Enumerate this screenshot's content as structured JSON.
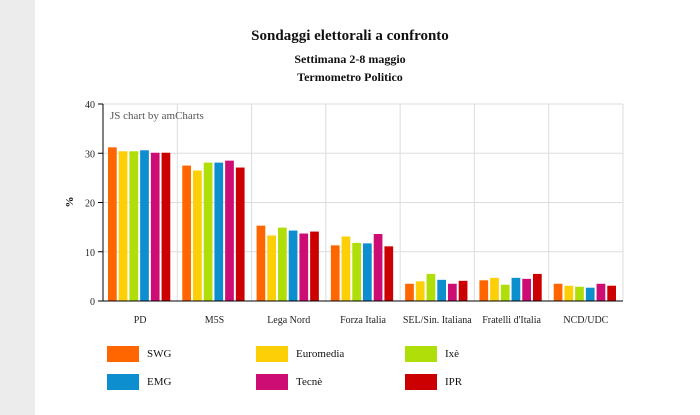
{
  "chart_data": {
    "type": "bar",
    "title": "Sondaggi elettorali a confronto",
    "subtitle": "Settimana 2-8 maggio",
    "subtitle2": "Termometro Politico",
    "credit": "JS chart by amCharts",
    "ylabel": "%",
    "ylim": [
      0,
      40
    ],
    "yticks": [
      0,
      10,
      20,
      30,
      40
    ],
    "grid": true,
    "legend_position": "bottom",
    "categories": [
      "PD",
      "M5S",
      "Lega Nord",
      "Forza Italia",
      "SEL/Sin. Italiana",
      "Fratelli d'Italia",
      "NCD/UDC"
    ],
    "series": [
      {
        "name": "SWG",
        "color": "#ff6600",
        "values": [
          31.2,
          27.5,
          15.3,
          11.3,
          3.5,
          4.2,
          3.5
        ]
      },
      {
        "name": "Euromedia",
        "color": "#fccf06",
        "values": [
          30.4,
          26.5,
          13.3,
          13.1,
          4.0,
          4.7,
          3.1
        ]
      },
      {
        "name": "Ixè",
        "color": "#b0de09",
        "values": [
          30.4,
          28.1,
          14.9,
          11.8,
          5.5,
          3.3,
          2.9
        ]
      },
      {
        "name": "EMG",
        "color": "#0d8ecf",
        "values": [
          30.6,
          28.1,
          14.3,
          11.7,
          4.3,
          4.7,
          2.7
        ]
      },
      {
        "name": "Tecnè",
        "color": "#cd0d74",
        "values": [
          30.1,
          28.5,
          13.7,
          13.6,
          3.5,
          4.5,
          3.5
        ]
      },
      {
        "name": "IPR",
        "color": "#cc0000",
        "values": [
          30.1,
          27.1,
          14.1,
          11.1,
          4.1,
          5.5,
          3.1
        ]
      }
    ]
  }
}
